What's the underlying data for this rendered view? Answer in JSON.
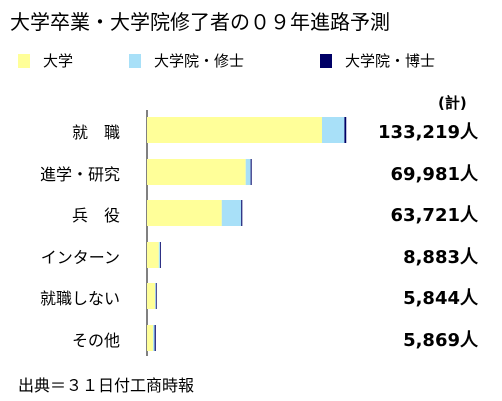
{
  "title": "大学卒業・大学院修了者の０９年進路予測",
  "source": "出典＝３１日付工商時報",
  "totals_header": "(計)",
  "chart_data": {
    "type": "bar",
    "orientation": "horizontal",
    "stacked": true,
    "title": "大学卒業・大学院修了者の０９年進路予測",
    "xlabel": "",
    "ylabel": "",
    "xlim": [
      0,
      230000
    ],
    "grid": false,
    "legend_position": "top",
    "categories": [
      "就　職",
      "進学・研究",
      "兵　役",
      "インターン",
      "就職しない",
      "その他"
    ],
    "totals_label": "(計)",
    "totals": [
      "133,219人",
      "69,981人",
      "63,721人",
      "8,883人",
      "5,844人",
      "5,869人"
    ],
    "series": [
      {
        "name": "大学",
        "color": "#ffff99",
        "values": [
          117000,
          66000,
          50000,
          7900,
          5400,
          4100
        ]
      },
      {
        "name": "大学院・修士",
        "color": "#a8e0f8",
        "values": [
          15000,
          3300,
          13000,
          900,
          400,
          1000
        ]
      },
      {
        "name": "大学院・博士",
        "color": "#000066",
        "values": [
          1219,
          681,
          721,
          83,
          44,
          769
        ]
      }
    ]
  }
}
